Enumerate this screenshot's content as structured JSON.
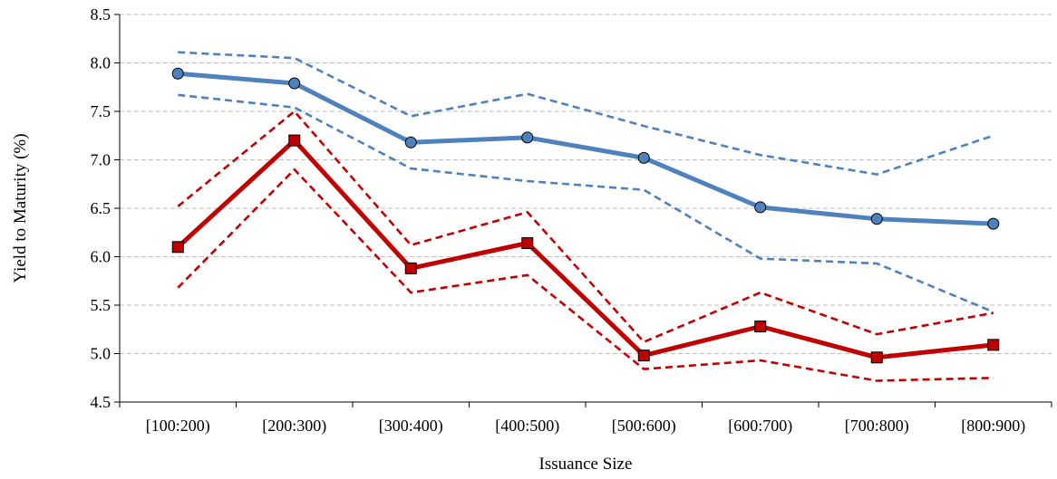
{
  "chart_data": {
    "type": "line",
    "title": "",
    "xlabel": "Issuance Size",
    "ylabel": "Yield to Maturity (%)",
    "categories": [
      "[100:200)",
      "[200:300)",
      "[300:400)",
      "[400:500)",
      "[500:600)",
      "[600:700)",
      "[700:800)",
      "[800:900)"
    ],
    "ylim": [
      4.5,
      8.5
    ],
    "yticks": [
      "4.5",
      "5.0",
      "5.5",
      "6.0",
      "6.5",
      "7.0",
      "7.5",
      "8.0",
      "8.5"
    ],
    "grid": true,
    "legend": "none",
    "series": [
      {
        "values": [
          7.89,
          7.79,
          7.18,
          7.23,
          7.02,
          6.51,
          6.39,
          6.34
        ],
        "color": "#4f81bd",
        "style": "solid",
        "marker": "circle"
      },
      {
        "values": [
          8.11,
          8.05,
          7.45,
          7.68,
          7.35,
          7.05,
          6.85,
          7.25
        ],
        "color": "#4f81bd",
        "style": "dashed",
        "marker": "none"
      },
      {
        "values": [
          7.67,
          7.54,
          6.91,
          6.78,
          6.69,
          5.98,
          5.93,
          5.43
        ],
        "color": "#4f81bd",
        "style": "dashed",
        "marker": "none"
      },
      {
        "values": [
          6.1,
          7.2,
          5.88,
          6.14,
          4.98,
          5.28,
          4.96,
          5.09
        ],
        "color": "#c00000",
        "style": "solid",
        "marker": "square"
      },
      {
        "values": [
          6.52,
          7.5,
          6.12,
          6.46,
          5.12,
          5.63,
          5.2,
          5.42
        ],
        "color": "#c00000",
        "style": "dashed",
        "marker": "none"
      },
      {
        "values": [
          5.68,
          6.9,
          5.63,
          5.81,
          4.84,
          4.93,
          4.72,
          4.75
        ],
        "color": "#c00000",
        "style": "dashed",
        "marker": "none"
      }
    ]
  }
}
